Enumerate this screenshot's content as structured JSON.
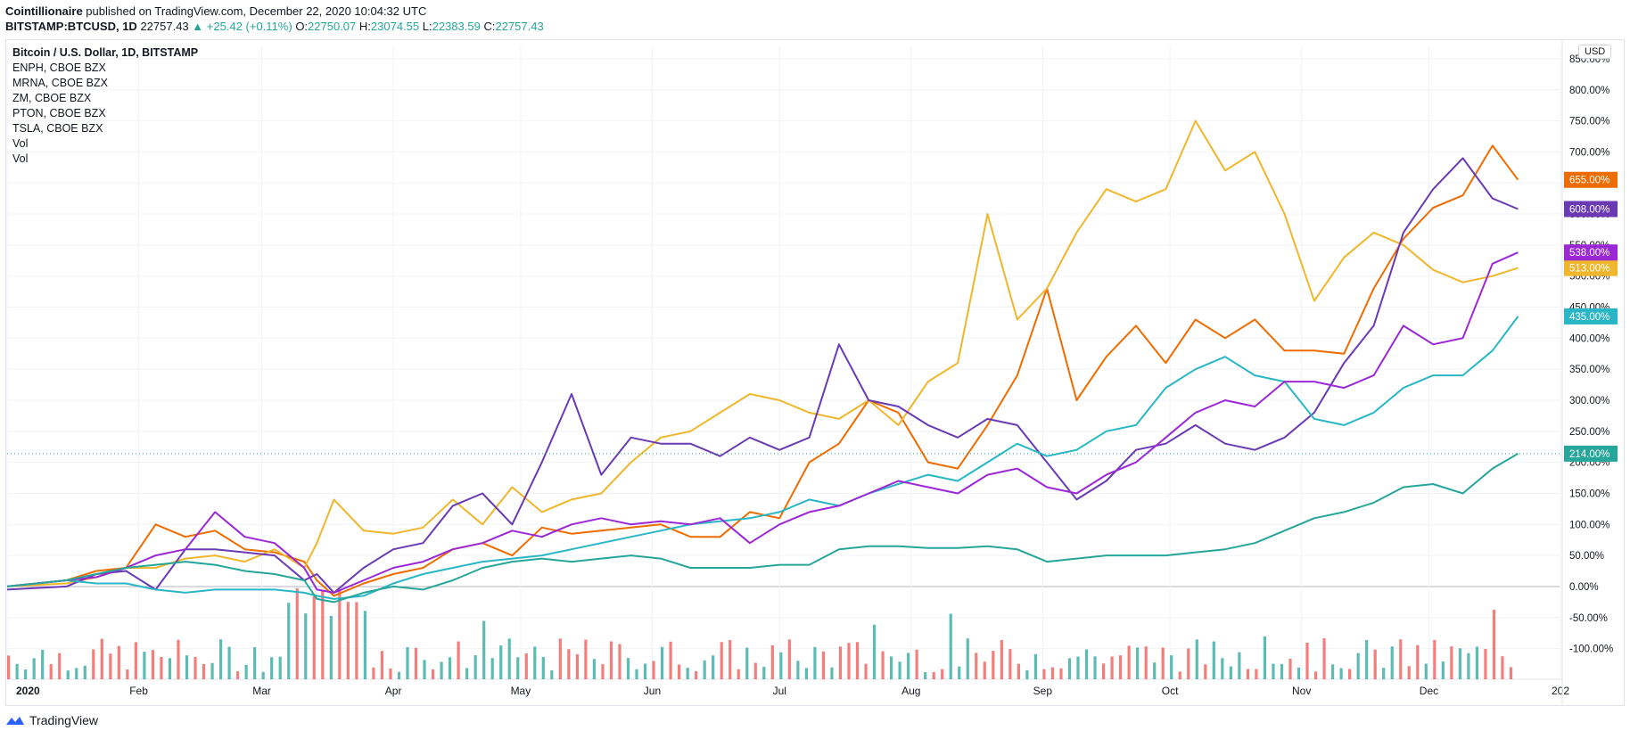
{
  "header": {
    "author": "Cointillionaire",
    "published_text": "published on TradingView.com, December 22, 2020 10:04:32 UTC",
    "symbol": "BITSTAMP:BTCUSD, 1D",
    "price": "22757.43",
    "change": "+25.42 (+0.11%)",
    "o_label": "O:",
    "o_value": "22750.07",
    "h_label": "H:",
    "h_value": "23074.55",
    "l_label": "L:",
    "l_value": "22383.59",
    "c_label": "C:",
    "c_value": "22757.43"
  },
  "legend": [
    "Bitcoin / U.S. Dollar, 1D, BITSTAMP",
    "ENPH, CBOE BZX",
    "MRNA, CBOE BZX",
    "ZM, CBOE BZX",
    "PTON, CBOE BZX",
    "TSLA, CBOE BZX",
    "Vol",
    "Vol"
  ],
  "currency_button": "USD",
  "footer": {
    "brand": "TradingView"
  },
  "chart_data": {
    "type": "line",
    "x_ticks": [
      "2020",
      "Feb",
      "Mar",
      "Apr",
      "May",
      "Jun",
      "Jul",
      "Aug",
      "Sep",
      "Oct",
      "Nov",
      "Dec",
      "202"
    ],
    "y_ticks": [
      "-100.00%",
      "-50.00%",
      "0.00%",
      "50.00%",
      "100.00%",
      "150.00%",
      "200.00%",
      "250.00%",
      "300.00%",
      "350.00%",
      "400.00%",
      "450.00%",
      "500.00%",
      "550.00%",
      "600.00%",
      "650.00%",
      "700.00%",
      "750.00%",
      "800.00%",
      "850.00%"
    ],
    "ylim": [
      -125,
      870
    ],
    "x_unit": "day_of_year_2020",
    "series": [
      {
        "name": "ENPH",
        "color": "#ef6c00",
        "x": [
          0,
          14,
          21,
          28,
          35,
          42,
          49,
          56,
          63,
          70,
          73,
          77,
          84,
          91,
          98,
          105,
          112,
          119,
          126,
          133,
          140,
          147,
          154,
          161,
          168,
          175,
          182,
          189,
          196,
          203,
          210,
          217,
          224,
          231,
          238,
          245,
          252,
          259,
          266,
          273,
          280,
          287,
          294,
          301,
          308,
          315,
          322,
          329,
          336,
          343,
          350,
          356
        ],
        "y": [
          0,
          10,
          25,
          30,
          100,
          80,
          90,
          60,
          55,
          40,
          10,
          -15,
          5,
          20,
          30,
          60,
          70,
          50,
          95,
          85,
          90,
          95,
          100,
          80,
          80,
          120,
          110,
          200,
          230,
          300,
          280,
          200,
          190,
          260,
          340,
          480,
          300,
          370,
          420,
          360,
          430,
          400,
          430,
          380,
          380,
          375,
          480,
          560,
          610,
          630,
          710,
          655
        ]
      },
      {
        "name": "MRNA",
        "color": "#f0b62c",
        "x": [
          0,
          14,
          21,
          28,
          35,
          42,
          49,
          56,
          63,
          70,
          73,
          77,
          84,
          91,
          98,
          105,
          112,
          119,
          126,
          133,
          140,
          147,
          154,
          161,
          168,
          175,
          182,
          189,
          196,
          203,
          210,
          217,
          224,
          231,
          238,
          245,
          252,
          259,
          266,
          273,
          280,
          287,
          294,
          301,
          308,
          315,
          322,
          329,
          336,
          343,
          350,
          356
        ],
        "y": [
          0,
          5,
          15,
          30,
          30,
          45,
          50,
          40,
          60,
          30,
          70,
          140,
          90,
          85,
          95,
          140,
          100,
          160,
          120,
          140,
          150,
          200,
          240,
          250,
          280,
          310,
          300,
          280,
          270,
          300,
          260,
          330,
          360,
          600,
          430,
          480,
          570,
          640,
          620,
          640,
          750,
          670,
          700,
          600,
          460,
          530,
          570,
          550,
          510,
          490,
          500,
          513
        ]
      },
      {
        "name": "ZM",
        "color": "#6a3ab5",
        "x": [
          0,
          14,
          21,
          28,
          35,
          42,
          49,
          56,
          63,
          70,
          73,
          77,
          84,
          91,
          98,
          105,
          112,
          119,
          126,
          133,
          140,
          147,
          154,
          161,
          168,
          175,
          182,
          189,
          196,
          203,
          210,
          217,
          224,
          231,
          238,
          245,
          252,
          259,
          266,
          273,
          280,
          287,
          294,
          301,
          308,
          315,
          322,
          329,
          336,
          343,
          350,
          356
        ],
        "y": [
          -5,
          0,
          20,
          25,
          -5,
          60,
          60,
          55,
          50,
          10,
          20,
          -10,
          30,
          60,
          70,
          130,
          150,
          100,
          200,
          310,
          180,
          240,
          230,
          230,
          210,
          240,
          220,
          240,
          390,
          300,
          290,
          260,
          240,
          270,
          260,
          200,
          140,
          170,
          220,
          230,
          260,
          230,
          220,
          240,
          280,
          360,
          420,
          570,
          640,
          690,
          625,
          608
        ]
      },
      {
        "name": "PTON",
        "color": "#29b6c6",
        "x": [
          0,
          14,
          21,
          28,
          35,
          42,
          49,
          56,
          63,
          70,
          73,
          77,
          84,
          91,
          98,
          105,
          112,
          119,
          126,
          133,
          140,
          147,
          154,
          161,
          168,
          175,
          182,
          189,
          196,
          203,
          210,
          217,
          224,
          231,
          238,
          245,
          252,
          259,
          266,
          273,
          280,
          287,
          294,
          301,
          308,
          315,
          322,
          329,
          336,
          343,
          350,
          356
        ],
        "y": [
          0,
          10,
          5,
          5,
          -5,
          -10,
          -5,
          -5,
          -5,
          -10,
          -15,
          -20,
          -15,
          5,
          20,
          30,
          40,
          45,
          50,
          60,
          70,
          80,
          90,
          100,
          105,
          110,
          120,
          140,
          130,
          150,
          165,
          180,
          170,
          200,
          230,
          210,
          220,
          250,
          260,
          320,
          350,
          370,
          340,
          330,
          270,
          260,
          280,
          320,
          340,
          340,
          380,
          435
        ]
      },
      {
        "name": "TSLA",
        "color": "#9c27d6",
        "x": [
          0,
          14,
          21,
          28,
          35,
          42,
          49,
          56,
          63,
          70,
          73,
          77,
          84,
          91,
          98,
          105,
          112,
          119,
          126,
          133,
          140,
          147,
          154,
          161,
          168,
          175,
          182,
          189,
          196,
          203,
          210,
          217,
          224,
          231,
          238,
          245,
          252,
          259,
          266,
          273,
          280,
          287,
          294,
          301,
          308,
          315,
          322,
          329,
          336,
          343,
          350,
          356
        ],
        "y": [
          0,
          10,
          15,
          30,
          50,
          60,
          120,
          80,
          70,
          30,
          -5,
          -10,
          10,
          30,
          40,
          60,
          70,
          90,
          80,
          100,
          110,
          100,
          105,
          100,
          110,
          70,
          100,
          120,
          130,
          150,
          170,
          160,
          150,
          180,
          190,
          160,
          150,
          180,
          200,
          240,
          280,
          300,
          290,
          330,
          330,
          320,
          340,
          420,
          390,
          400,
          520,
          538
        ]
      },
      {
        "name": "BTCUSD",
        "color": "#26a69a",
        "x": [
          0,
          14,
          21,
          28,
          35,
          42,
          49,
          56,
          63,
          70,
          73,
          77,
          84,
          91,
          98,
          105,
          112,
          119,
          126,
          133,
          140,
          147,
          154,
          161,
          168,
          175,
          182,
          189,
          196,
          203,
          210,
          217,
          224,
          231,
          238,
          245,
          252,
          259,
          266,
          273,
          280,
          287,
          294,
          301,
          308,
          315,
          322,
          329,
          336,
          343,
          350,
          356
        ],
        "y": [
          0,
          10,
          20,
          30,
          35,
          40,
          35,
          25,
          20,
          10,
          -20,
          -25,
          -10,
          0,
          -5,
          10,
          30,
          40,
          45,
          40,
          45,
          50,
          45,
          30,
          30,
          30,
          35,
          35,
          60,
          65,
          65,
          62,
          62,
          65,
          60,
          40,
          45,
          50,
          50,
          50,
          55,
          60,
          70,
          90,
          110,
          120,
          135,
          160,
          165,
          150,
          190,
          214
        ]
      }
    ],
    "volume_note": "volume bars"
  }
}
